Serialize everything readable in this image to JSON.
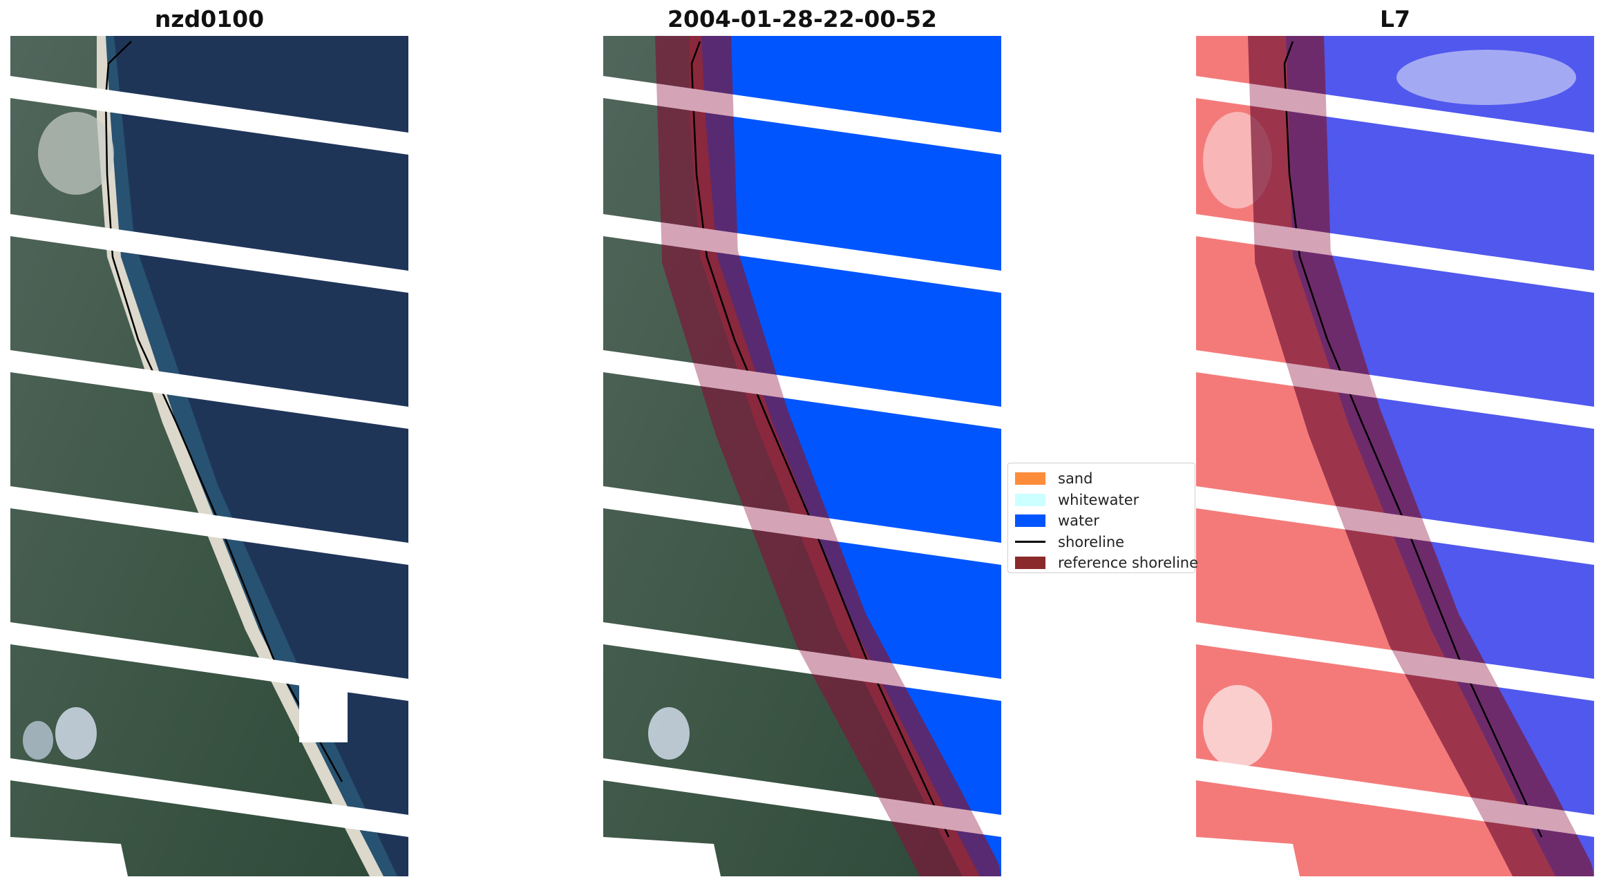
{
  "panels": [
    {
      "title": "nzd0100"
    },
    {
      "title": "2004-01-28-22-00-52"
    },
    {
      "title": "L7"
    }
  ],
  "legend": {
    "items": [
      {
        "label": "sand",
        "color": "#ff8c3a",
        "kind": "patch"
      },
      {
        "label": "whitewater",
        "color": "#ccffff",
        "kind": "patch"
      },
      {
        "label": "water",
        "color": "#0055ff",
        "kind": "patch"
      },
      {
        "label": "shoreline",
        "color": "#000000",
        "kind": "line"
      },
      {
        "label": "reference shoreline",
        "color": "#8b1a1a",
        "kind": "patch"
      }
    ]
  },
  "colors": {
    "land_rgb": "#3f5a4a",
    "ocean_rgb": "#1f3558",
    "sand_rgb": "#dcd8cc",
    "class_water": "#0055ff",
    "class_sand": "#ff8c3a",
    "ref_buffer": "#7a1a3a",
    "index_land": "#f47a7a",
    "index_water": "#5058ee",
    "scan_gap": "#ffffff"
  }
}
